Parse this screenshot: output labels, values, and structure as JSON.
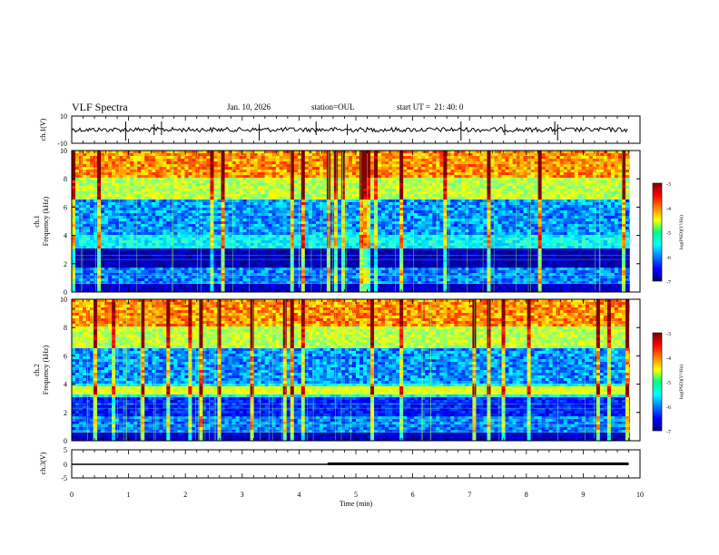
{
  "header": {
    "title": "VLF Spectra",
    "date": "Jan. 10, 2026",
    "station_label": "station=",
    "station": "OUL",
    "start_label": "start UT =",
    "start_time": "21: 40: 0"
  },
  "chart_data": [
    {
      "type": "line",
      "id": "ch1-waveform",
      "ylabel": "ch.1(V)",
      "ylim": [
        -10,
        10
      ],
      "yticks": [
        "10",
        "-10"
      ],
      "description_level": "noise around ~0 V with occasional spikes",
      "spike_times_min": [
        0.95,
        1.45,
        1.58,
        3.3,
        4.3,
        4.85,
        6.85,
        7.62,
        8.5,
        8.55
      ]
    },
    {
      "type": "heatmap",
      "id": "ch1-spectrogram",
      "ylabel": "ch.1\nFrequency (kHz)",
      "ylim": [
        0,
        10
      ],
      "yticks": [
        "0",
        "2",
        "4",
        "6",
        "8",
        "10"
      ],
      "colorbar": {
        "label": "log(PSD)(V²/Hz)",
        "range": [
          -7,
          -3
        ],
        "ticks": [
          "-3",
          "-4",
          "-5",
          "-6",
          "-7"
        ]
      }
    },
    {
      "type": "heatmap",
      "id": "ch2-spectrogram",
      "ylabel": "ch.2\nFrequency (kHz)",
      "ylim": [
        0,
        10
      ],
      "yticks": [
        "0",
        "2",
        "4",
        "6",
        "8",
        "10"
      ],
      "colorbar": {
        "label": "log(PSD)(V²/Hz)",
        "range": [
          -7,
          -3
        ],
        "ticks": [
          "-3",
          "-4",
          "-5",
          "-6",
          "-7"
        ]
      }
    },
    {
      "type": "line",
      "id": "ch3-level",
      "ylabel": "ch.3(V)",
      "ylim": [
        -5,
        5
      ],
      "yticks": [
        "5",
        "0",
        "-5"
      ],
      "x": [
        0,
        4.5,
        4.5,
        9.8
      ],
      "y": [
        0,
        0,
        0,
        0
      ]
    }
  ],
  "xaxis": {
    "label": "Time (min)",
    "range": [
      0,
      10
    ],
    "ticks": [
      "0",
      "1",
      "2",
      "3",
      "4",
      "5",
      "6",
      "7",
      "8",
      "9",
      "10"
    ]
  },
  "colors": {
    "jet_low": "#00007f",
    "jet_high": "#7f0000"
  }
}
